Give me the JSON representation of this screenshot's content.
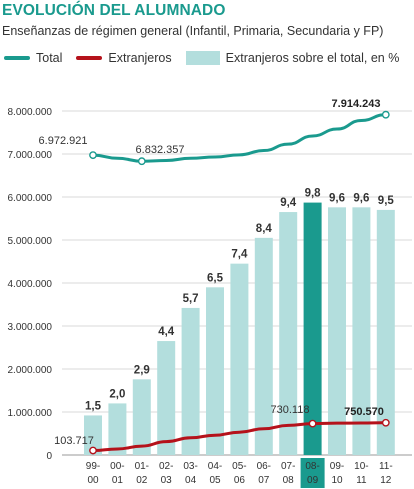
{
  "header": {
    "title": "EVOLUCIÓN DEL ALUMNADO",
    "subtitle": "Enseñanzas de régimen general (Infantil, Primaria, Secundaria y FP)"
  },
  "legend": {
    "total": "Total",
    "extranjeros": "Extranjeros",
    "porcentaje": "Extranjeros sobre el total, en %"
  },
  "colors": {
    "teal": "#1a9a8e",
    "red": "#b5121b",
    "bar": "#b3dedd",
    "bar_highlight": "#1a9a8e",
    "grid": "#d9d9d9"
  },
  "chart_data": {
    "type": "bar",
    "categories": [
      [
        "99-",
        "00"
      ],
      [
        "00-",
        "01"
      ],
      [
        "01-",
        "02"
      ],
      [
        "02-",
        "03"
      ],
      [
        "03-",
        "04"
      ],
      [
        "04-",
        "05"
      ],
      [
        "05-",
        "06"
      ],
      [
        "06-",
        "07"
      ],
      [
        "07-",
        "08"
      ],
      [
        "08-",
        "09"
      ],
      [
        "09-",
        "10"
      ],
      [
        "10-",
        "11"
      ],
      [
        "11-",
        "12"
      ]
    ],
    "ylim": [
      0,
      8000000
    ],
    "yticks": [
      0,
      1000000,
      2000000,
      3000000,
      4000000,
      5000000,
      6000000,
      7000000,
      8000000
    ],
    "ytick_labels": [
      "0",
      "1.000.000",
      "2.000.000",
      "3.000.000",
      "4.000.000",
      "5.000.000",
      "6.000.000",
      "7.000.000",
      "8.000.000"
    ],
    "grid": true,
    "highlight_index": 9,
    "series": [
      {
        "name": "Extranjeros sobre el total, en %",
        "kind": "bar",
        "percent_values": [
          1.5,
          2.0,
          2.9,
          4.4,
          5.7,
          6.5,
          7.4,
          8.4,
          9.4,
          9.8,
          9.6,
          9.6,
          9.5
        ],
        "labels": [
          "1,5",
          "2,0",
          "2,9",
          "4,4",
          "5,7",
          "6,5",
          "7,4",
          "8,4",
          "9,4",
          "9,8",
          "9,6",
          "9,6",
          "9,5"
        ],
        "bar_heights_axis_units": [
          920000,
          1200000,
          1760000,
          2650000,
          3420000,
          3900000,
          4450000,
          5050000,
          5650000,
          5870000,
          5760000,
          5760000,
          5700000
        ]
      },
      {
        "name": "Total",
        "kind": "line",
        "values": [
          6972921,
          6900000,
          6832357,
          6850000,
          6900000,
          6930000,
          6980000,
          7080000,
          7230000,
          7420000,
          7580000,
          7780000,
          7914243
        ],
        "annotations": [
          {
            "index": 0,
            "text": "6.972.921"
          },
          {
            "index": 2,
            "text": "6.832.357"
          },
          {
            "index": 12,
            "text": "7.914.243"
          }
        ]
      },
      {
        "name": "Extranjeros",
        "kind": "line",
        "values": [
          103717,
          140000,
          207000,
          310000,
          400000,
          460000,
          530000,
          610000,
          690000,
          730118,
          740000,
          745000,
          750570
        ],
        "annotations": [
          {
            "index": 0,
            "text": "103.717"
          },
          {
            "index": 9,
            "text": "730.118"
          },
          {
            "index": 12,
            "text": "750.570"
          }
        ]
      }
    ]
  }
}
